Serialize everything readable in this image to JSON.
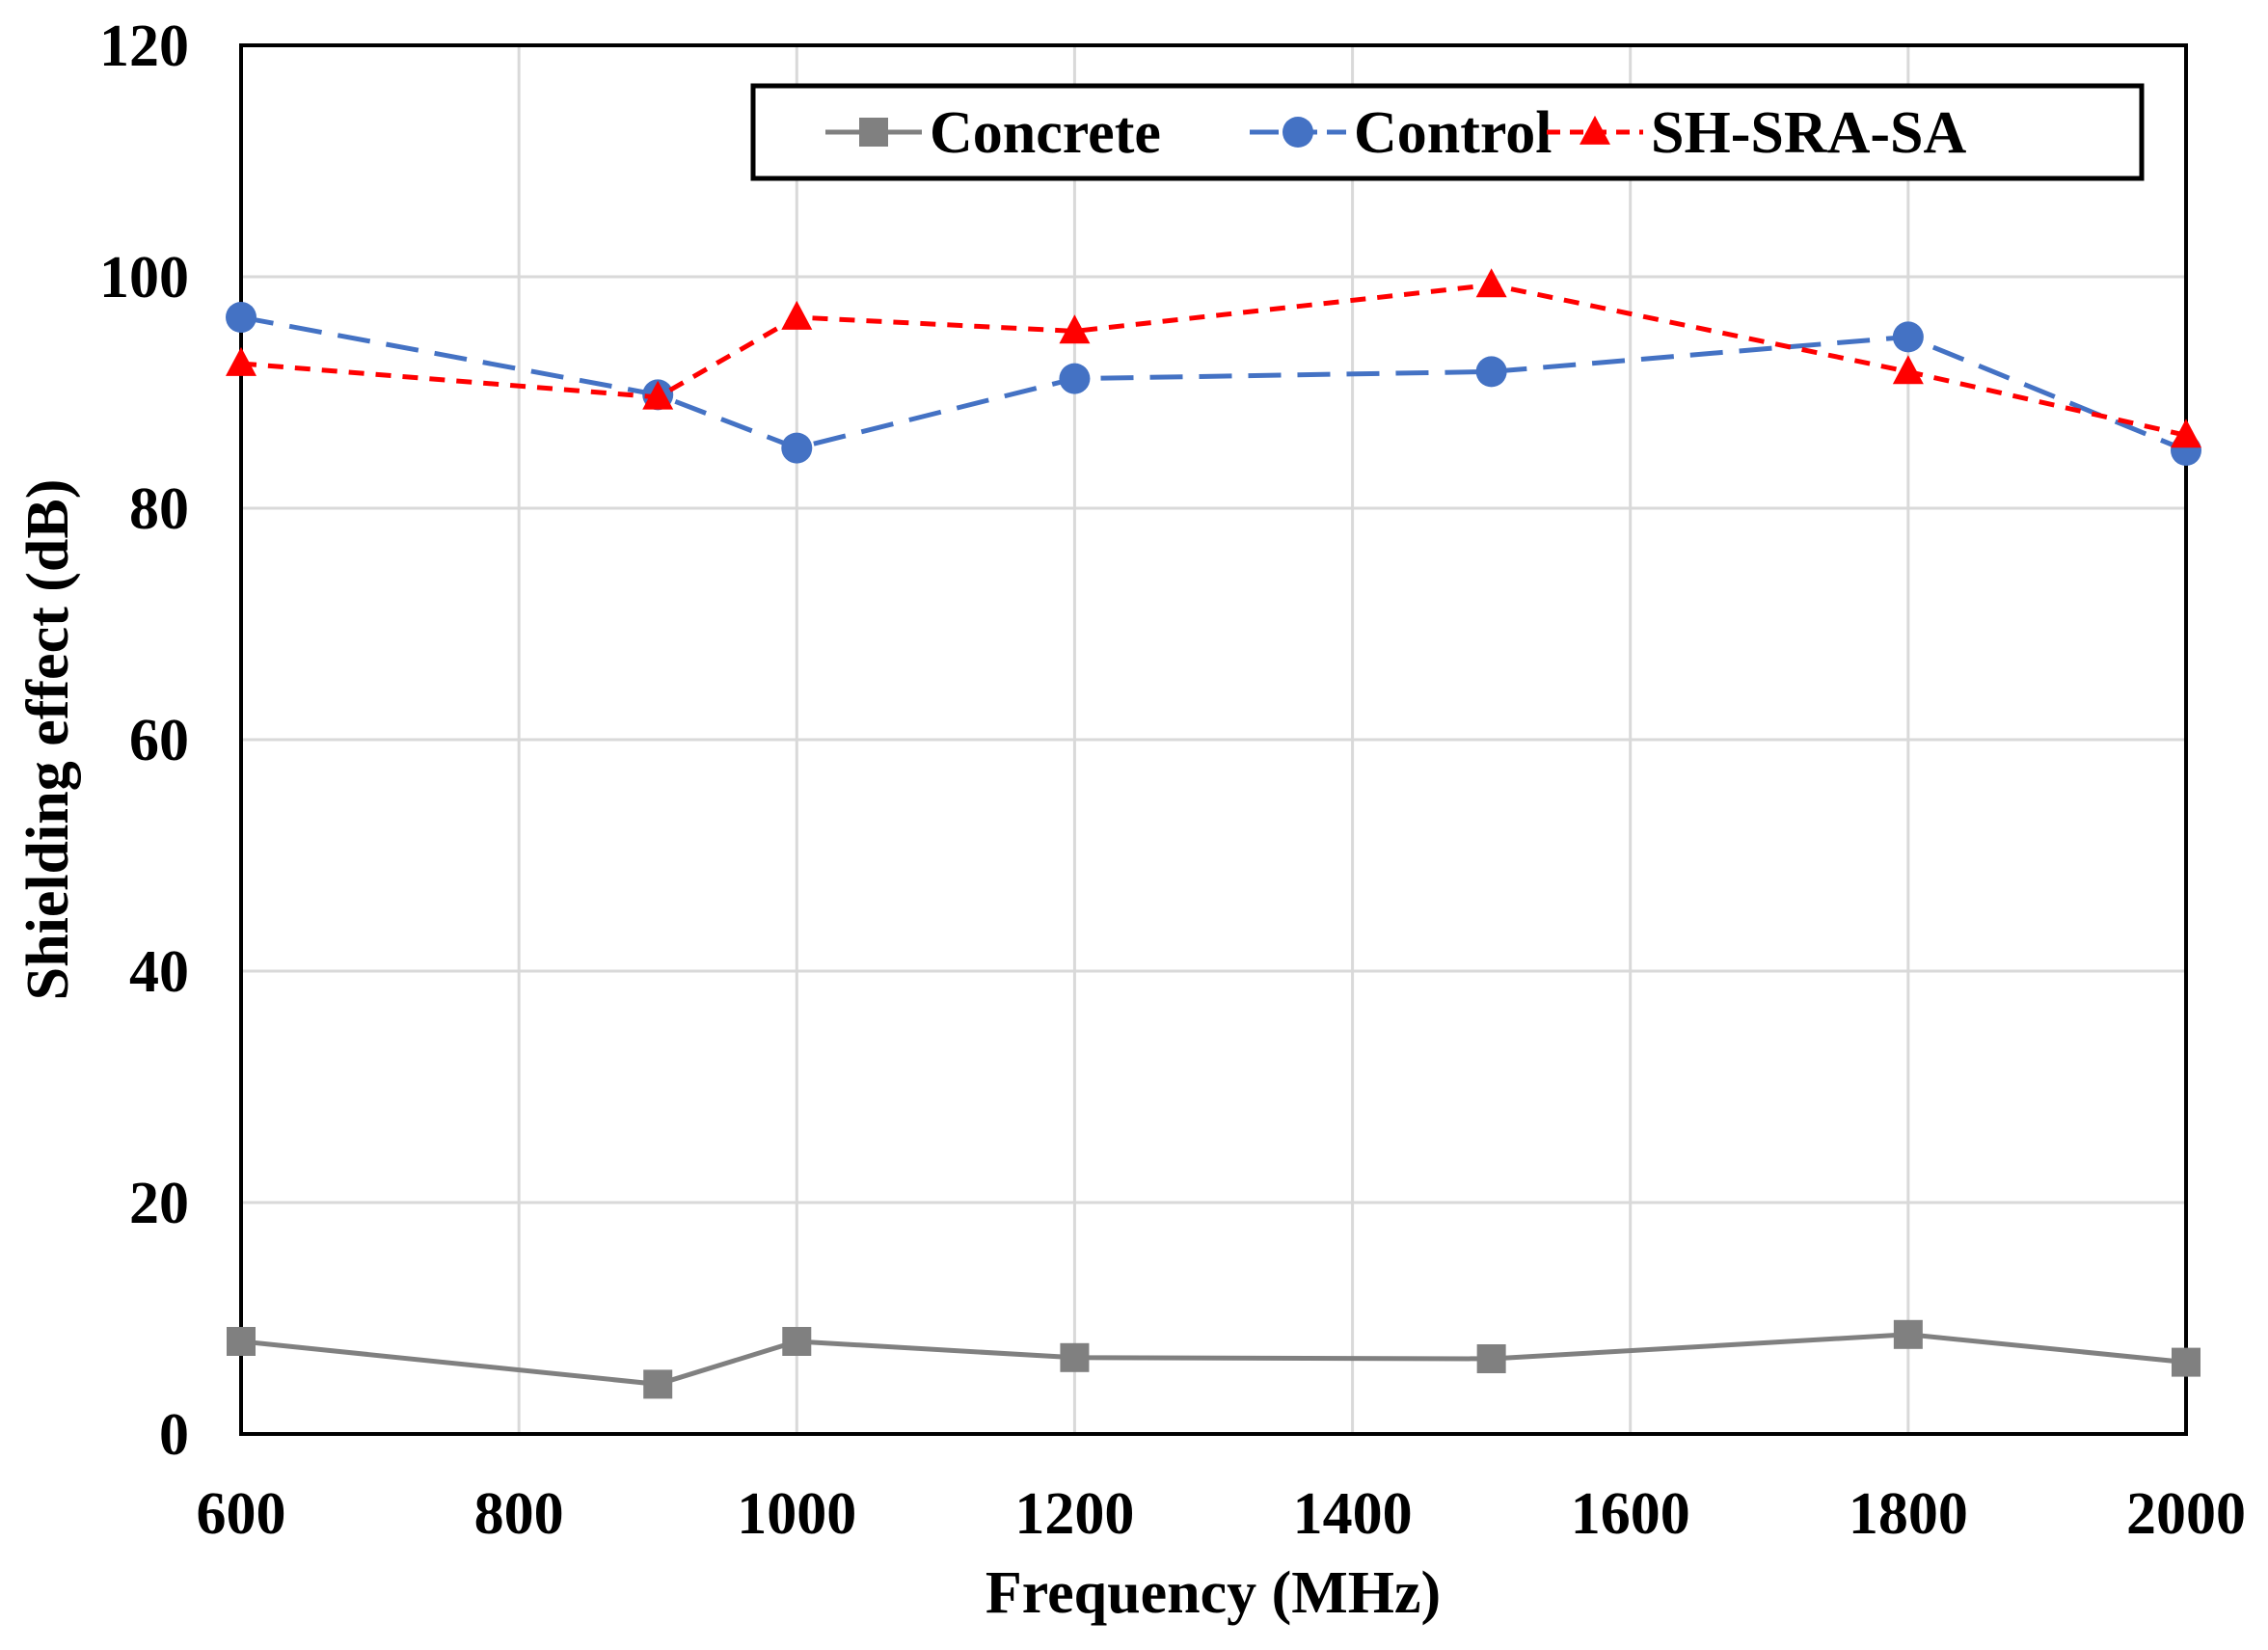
{
  "chart_data": {
    "type": "line",
    "title": "",
    "xlabel": "Frequency (MHz)",
    "ylabel": "Shielding effect (dB)",
    "xlim": [
      600,
      2000
    ],
    "ylim": [
      0,
      120
    ],
    "x_ticks": [
      600,
      800,
      1000,
      1200,
      1400,
      1600,
      1800,
      2000
    ],
    "y_ticks": [
      0,
      20,
      40,
      60,
      80,
      100,
      120
    ],
    "grid": true,
    "legend_position": "top-right",
    "series": [
      {
        "name": "Concrete",
        "color": "#808080",
        "marker": "square",
        "line_style": "solid",
        "x": [
          600,
          900,
          1000,
          1200,
          1500,
          1800,
          2000
        ],
        "values": [
          8.0,
          4.3,
          8.0,
          6.6,
          6.5,
          8.6,
          6.2
        ]
      },
      {
        "name": "Control",
        "color": "#4472C4",
        "marker": "circle",
        "line_style": "long-dash",
        "x": [
          600,
          900,
          1000,
          1200,
          1500,
          1800,
          2000
        ],
        "values": [
          96.5,
          89.8,
          85.2,
          91.2,
          91.8,
          94.8,
          85.0
        ]
      },
      {
        "name": "SH-SRA-SA",
        "color": "#FF0000",
        "marker": "triangle",
        "line_style": "short-dash",
        "x": [
          600,
          900,
          1000,
          1200,
          1500,
          1800,
          2000
        ],
        "values": [
          92.5,
          89.6,
          96.5,
          95.3,
          99.3,
          91.8,
          86.3
        ]
      }
    ]
  }
}
